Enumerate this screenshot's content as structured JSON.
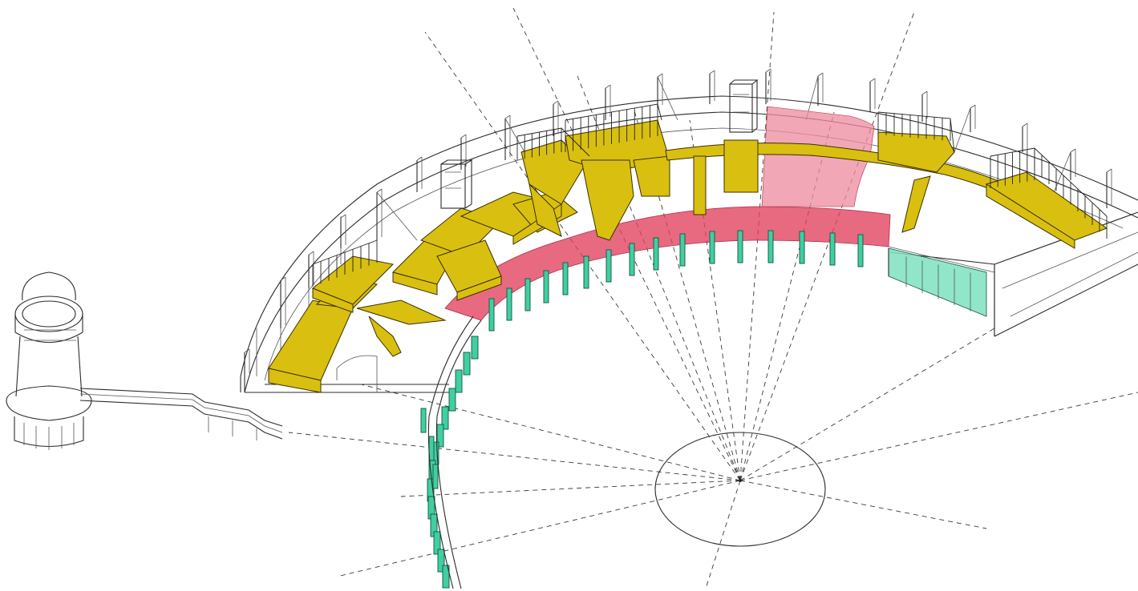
{
  "diagram": {
    "kind": "axonometric architectural drawing",
    "colors": {
      "platforms": "#d9bf10",
      "inner_ring_band": "#e0405e",
      "upper_segment": "#ee8a9e",
      "glazing_panels": "#3fcfa2",
      "linework": "#2b2b2b",
      "background": "#ffffff"
    },
    "elements": {
      "tower": "tower",
      "walkway": "walkway",
      "ring_structure": "ring-structure",
      "platforms": "platforms",
      "glazing": "glazing",
      "sightlines": "sightlines",
      "focal_ellipse": "focal-ellipse"
    }
  }
}
